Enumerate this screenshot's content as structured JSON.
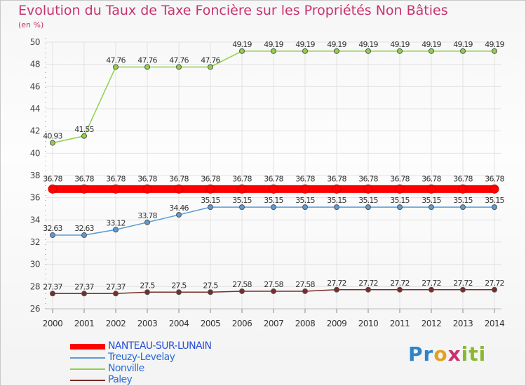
{
  "chart_data": {
    "type": "line",
    "title": "Evolution du Taux de Taxe Foncière sur les Propriétés Non Bâties",
    "ylabel": "(en %)",
    "xlabel": "",
    "x": [
      "2000",
      "2001",
      "2002",
      "2003",
      "2004",
      "2005",
      "2006",
      "2007",
      "2008",
      "2009",
      "2010",
      "2011",
      "2012",
      "2013",
      "2014"
    ],
    "ylim": [
      26,
      50
    ],
    "yticks": [
      26,
      28,
      30,
      32,
      34,
      36,
      38,
      40,
      42,
      44,
      46,
      48,
      50
    ],
    "grid": true,
    "legend_position": "bottom-left",
    "series": [
      {
        "name": "NANTEAU-SUR-LUNAIN",
        "color": "#ff0000",
        "values": [
          36.78,
          36.78,
          36.78,
          36.78,
          36.78,
          36.78,
          36.78,
          36.78,
          36.78,
          36.78,
          36.78,
          36.78,
          36.78,
          36.78,
          36.78
        ],
        "labels": [
          "36.78",
          "36.78",
          "36.78",
          "36.78",
          "36.78",
          "36.78",
          "36.78",
          "36.78",
          "36.78",
          "36.78",
          "36.78",
          "36.78",
          "36.78",
          "36.78",
          "36.78"
        ]
      },
      {
        "name": "Treuzy-Levelay",
        "color": "#5b9bd5",
        "values": [
          32.63,
          32.63,
          33.12,
          33.78,
          34.46,
          35.15,
          35.15,
          35.15,
          35.15,
          35.15,
          35.15,
          35.15,
          35.15,
          35.15,
          35.15
        ],
        "labels": [
          "32.63",
          "32.63",
          "33.12",
          "33.78",
          "34.46",
          "35.15",
          "35.15",
          "35.15",
          "35.15",
          "35.15",
          "35.15",
          "35.15",
          "35.15",
          "35.15",
          "35.15"
        ]
      },
      {
        "name": "Nonville",
        "color": "#8ed14a",
        "values": [
          40.93,
          41.55,
          47.76,
          47.76,
          47.76,
          47.76,
          49.19,
          49.19,
          49.19,
          49.19,
          49.19,
          49.19,
          49.19,
          49.19,
          49.19
        ],
        "labels": [
          "40.93",
          "41.55",
          "47.76",
          "47.76",
          "47.76",
          "47.76",
          "49.19",
          "49.19",
          "49.19",
          "49.19",
          "49.19",
          "49.19",
          "49.19",
          "49.19",
          "49.19"
        ]
      },
      {
        "name": "Paley",
        "color": "#7a2b2b",
        "values": [
          27.37,
          27.37,
          27.37,
          27.5,
          27.5,
          27.5,
          27.58,
          27.58,
          27.58,
          27.72,
          27.72,
          27.72,
          27.72,
          27.72,
          27.72
        ],
        "labels": [
          "27.37",
          "27.37",
          "27.37",
          "27.5",
          "27.5",
          "27.5",
          "27.58",
          "27.58",
          "27.58",
          "27.72",
          "27.72",
          "27.72",
          "27.72",
          "27.72",
          "27.72"
        ]
      }
    ]
  },
  "logo": {
    "p1": "Pr",
    "p2": "o",
    "p3": "x",
    "p4": "iti"
  }
}
